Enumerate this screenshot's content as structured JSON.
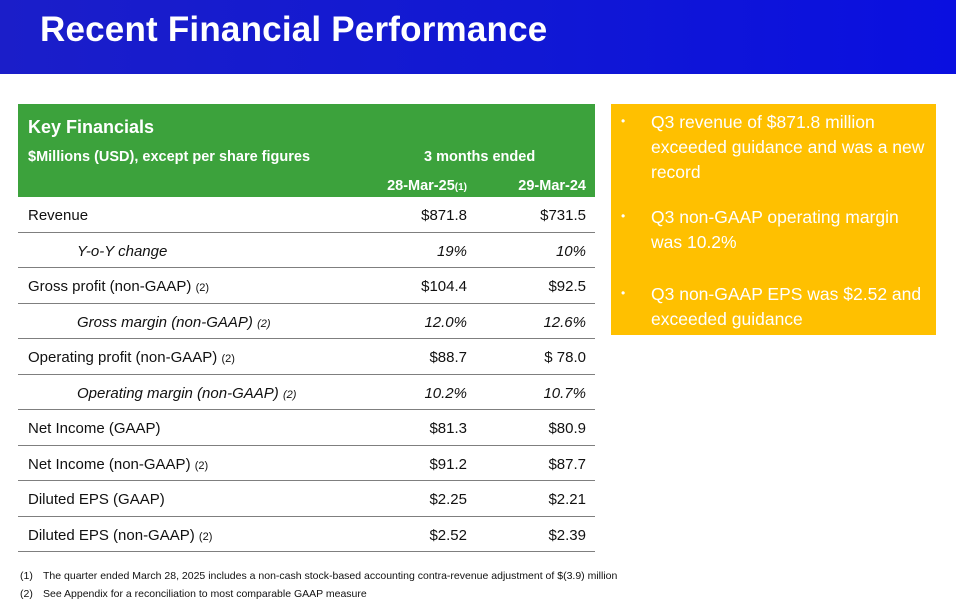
{
  "title": "Recent Financial Performance",
  "table": {
    "heading": "Key Financials",
    "subheading": "$Millions (USD), except per share figures",
    "period": "3 months ended",
    "col1": "28-Mar-25",
    "col1_note": "(1)",
    "col2": "29-Mar-24",
    "rows": [
      {
        "label": "Revenue",
        "note": "",
        "v1": "$871.8",
        "v2": "$731.5"
      },
      {
        "label": "Y-o-Y change",
        "note": "",
        "v1": "19%",
        "v2": "10%"
      },
      {
        "label": "Gross profit (non-GAAP)",
        "note": "(2)",
        "v1": "$104.4",
        "v2": "$92.5"
      },
      {
        "label": "Gross margin (non-GAAP)",
        "note": "(2)",
        "v1": "12.0%",
        "v2": "12.6%"
      },
      {
        "label": "Operating profit (non-GAAP)",
        "note": "(2)",
        "v1": "$88.7",
        "v2": "$ 78.0"
      },
      {
        "label": "Operating margin (non-GAAP)",
        "note": "(2)",
        "v1": "10.2%",
        "v2": "10.7%"
      },
      {
        "label": "Net Income (GAAP)",
        "note": "",
        "v1": "$81.3",
        "v2": "$80.9"
      },
      {
        "label": "Net Income (non-GAAP)",
        "note": "(2)",
        "v1": "$91.2",
        "v2": "$87.7"
      },
      {
        "label": "Diluted EPS (GAAP)",
        "note": "",
        "v1": "$2.25",
        "v2": "$2.21"
      },
      {
        "label": "Diluted EPS (non-GAAP)",
        "note": "(2)",
        "v1": "$2.52",
        "v2": "$2.39"
      }
    ]
  },
  "highlights": [
    "Q3 revenue of $871.8 million exceeded guidance and was a new record",
    "Q3 non-GAAP operating margin was 10.2%",
    "Q3 non-GAAP EPS was $2.52 and exceeded guidance"
  ],
  "footnotes": [
    {
      "num": "(1)",
      "text": "The quarter ended March 28, 2025 includes a non-cash stock-based accounting contra-revenue adjustment of $(3.9) million"
    },
    {
      "num": "(2)",
      "text": "See Appendix for a reconciliation to most comparable GAAP measure"
    }
  ],
  "colors": {
    "title_bar": "#1118d4",
    "table_header": "#3ca23c",
    "highlight_box": "#ffc000"
  }
}
